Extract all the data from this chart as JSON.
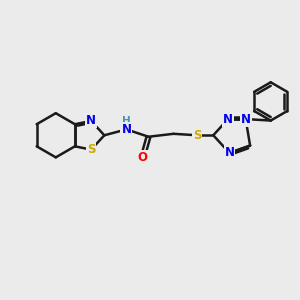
{
  "bg_color": "#ebebeb",
  "bond_color": "#1a1a1a",
  "bond_width": 1.8,
  "atom_colors": {
    "N": "#0000ee",
    "S": "#ccaa00",
    "O": "#ff0000",
    "H": "#4499aa",
    "C": "#1a1a1a"
  },
  "font_size": 8.5,
  "fig_size": [
    3.0,
    3.0
  ],
  "dpi": 100,
  "xlim": [
    0,
    10
  ],
  "ylim": [
    0,
    10
  ]
}
